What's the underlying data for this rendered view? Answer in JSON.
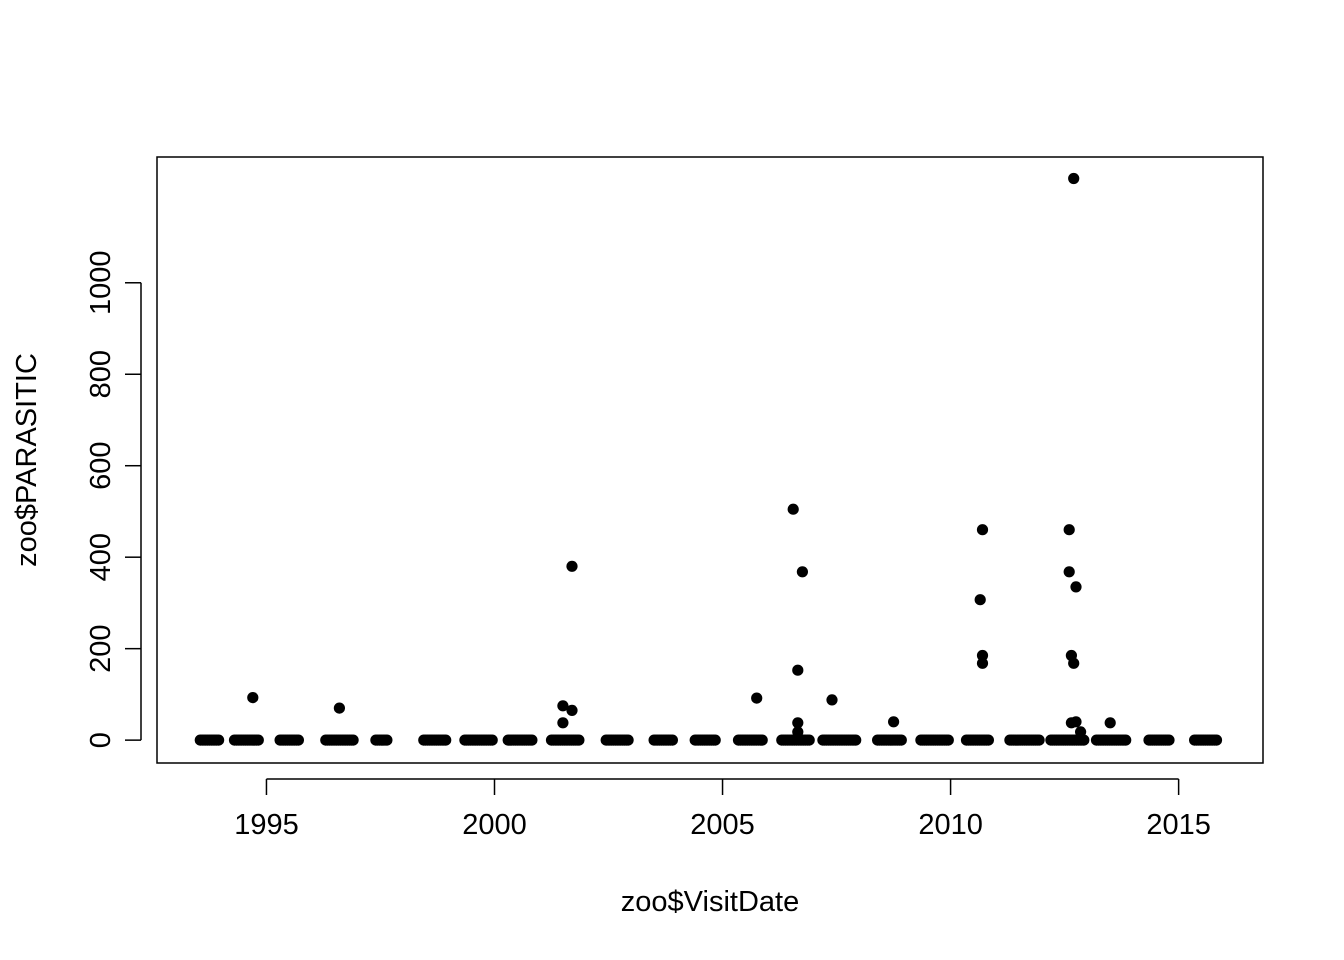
{
  "chart_data": {
    "type": "scatter",
    "title": "",
    "xlabel": "zoo$VisitDate",
    "ylabel": "zoo$PARASITIC",
    "x_unit": "decimal year",
    "xlim": [
      1992.6,
      2016.85
    ],
    "ylim": [
      -50,
      1275
    ],
    "x_ticks": [
      1995,
      2000,
      2005,
      2010,
      2015
    ],
    "y_ticks": [
      0,
      200,
      400,
      600,
      800,
      1000
    ],
    "grid": false,
    "legend": "none",
    "marker_color": "#000000",
    "zero_clusters": [
      [
        1993.55,
        1993.95
      ],
      [
        1994.3,
        1994.85
      ],
      [
        1995.3,
        1995.7
      ],
      [
        1996.3,
        1996.9
      ],
      [
        1997.4,
        1997.65
      ],
      [
        1998.45,
        1998.95
      ],
      [
        1999.35,
        1999.95
      ],
      [
        2000.3,
        2000.85
      ],
      [
        2001.25,
        2001.85
      ],
      [
        2002.45,
        2002.95
      ],
      [
        2003.5,
        2003.9
      ],
      [
        2004.4,
        2004.85
      ],
      [
        2005.35,
        2005.9
      ],
      [
        2006.3,
        2006.9
      ],
      [
        2007.2,
        2007.95
      ],
      [
        2008.4,
        2008.95
      ],
      [
        2009.35,
        2009.95
      ],
      [
        2010.35,
        2010.85
      ],
      [
        2011.3,
        2011.95
      ],
      [
        2012.2,
        2012.95
      ],
      [
        2013.2,
        2013.85
      ],
      [
        2014.35,
        2014.8
      ],
      [
        2015.35,
        2015.85
      ]
    ],
    "points": [
      {
        "x": 1994.7,
        "y": 93
      },
      {
        "x": 1996.6,
        "y": 70
      },
      {
        "x": 2001.5,
        "y": 75
      },
      {
        "x": 2001.5,
        "y": 38
      },
      {
        "x": 2001.7,
        "y": 380
      },
      {
        "x": 2001.7,
        "y": 65
      },
      {
        "x": 2005.75,
        "y": 92
      },
      {
        "x": 2006.55,
        "y": 505
      },
      {
        "x": 2006.65,
        "y": 153
      },
      {
        "x": 2006.65,
        "y": 38
      },
      {
        "x": 2006.65,
        "y": 18
      },
      {
        "x": 2006.75,
        "y": 368
      },
      {
        "x": 2007.4,
        "y": 88
      },
      {
        "x": 2008.75,
        "y": 40
      },
      {
        "x": 2010.65,
        "y": 307
      },
      {
        "x": 2010.7,
        "y": 460
      },
      {
        "x": 2010.7,
        "y": 185
      },
      {
        "x": 2010.7,
        "y": 168
      },
      {
        "x": 2012.6,
        "y": 460
      },
      {
        "x": 2012.6,
        "y": 368
      },
      {
        "x": 2012.65,
        "y": 185
      },
      {
        "x": 2012.65,
        "y": 38
      },
      {
        "x": 2012.7,
        "y": 168
      },
      {
        "x": 2012.7,
        "y": 1228
      },
      {
        "x": 2012.75,
        "y": 40
      },
      {
        "x": 2012.75,
        "y": 335
      },
      {
        "x": 2012.85,
        "y": 18
      },
      {
        "x": 2013.5,
        "y": 38
      }
    ]
  }
}
